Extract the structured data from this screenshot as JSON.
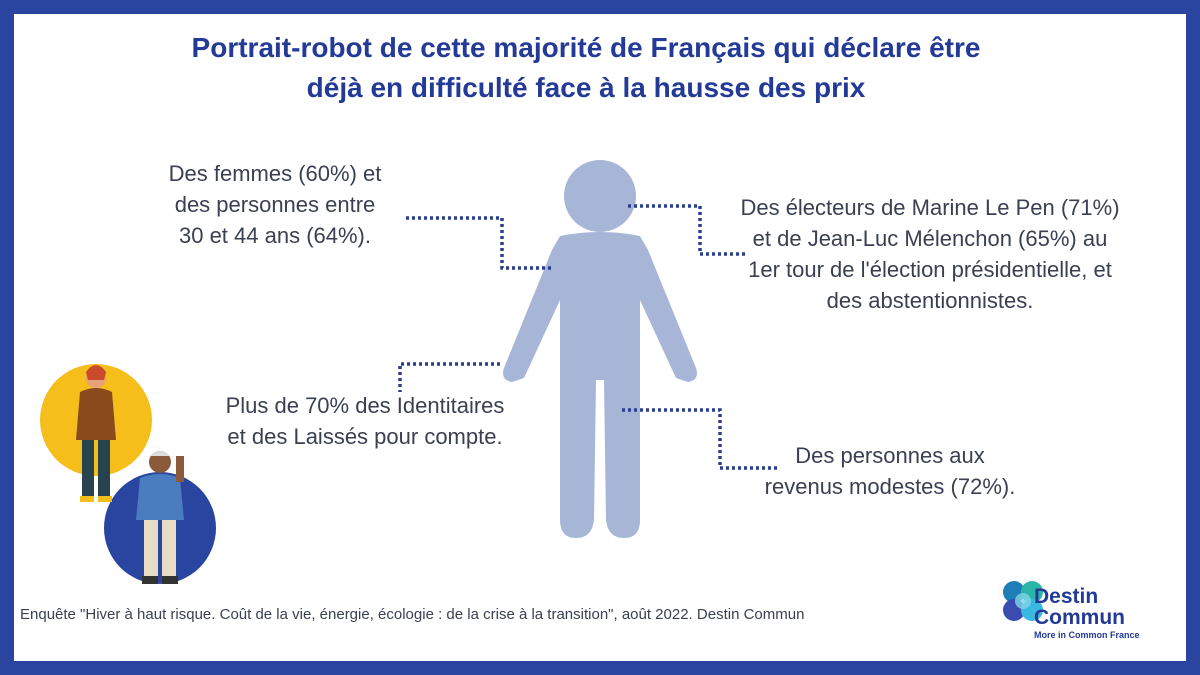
{
  "title": {
    "line1": "Portrait-robot de cette majorité de Français qui déclare être",
    "line2": "déjà en difficulté face à la hausse des prix"
  },
  "callouts": {
    "left_top": [
      "Des femmes (60%) et",
      "des personnes entre",
      "30 et 44 ans (64%)."
    ],
    "right_top": [
      "Des électeurs de Marine Le Pen (71%)",
      "et de Jean-Luc Mélenchon (65%) au",
      "1er tour de l'élection présidentielle, et",
      "des abstentionnistes."
    ],
    "left_mid": [
      "Plus de 70% des Identitaires",
      "et des Laissés pour compte."
    ],
    "right_bot": [
      "Des personnes aux",
      "revenus modestes (72%)."
    ]
  },
  "footer": "Enquête \"Hiver à haut risque. Coût de la vie, énergie, écologie : de la crise à la transition\", août 2022. Destin Commun",
  "logo": {
    "line1": "Destin",
    "line2": "Commun",
    "tagline": "More in Common France"
  },
  "colors": {
    "frame": "#2a45a0",
    "title": "#233a97",
    "figure": "#a7b5d7",
    "dots": "#2a3f8f",
    "yellow_circle": "#f5be1b",
    "blue_circle": "#2a45a0"
  }
}
